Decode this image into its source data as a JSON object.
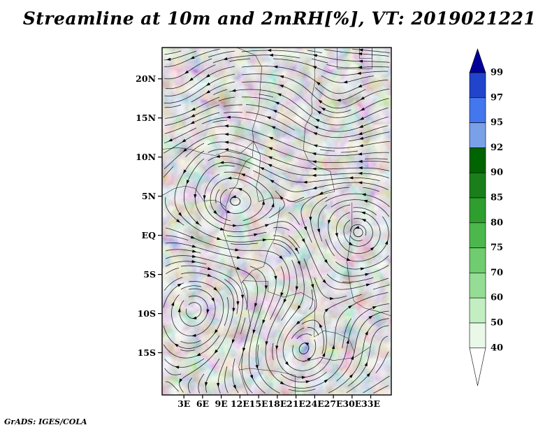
{
  "title": "Streamline at 10m and 2mRH[%], VT: 2019021221",
  "attribution": "GrADS: IGES/COLA",
  "chart_data": {
    "type": "streamline-map",
    "title": "Streamline at 10m and 2mRH[%], VT: 2019021221",
    "valid_time": "2019021221",
    "variables": [
      "10m wind streamlines",
      "2m relative humidity (%)"
    ],
    "x_axis": {
      "ticks": [
        "3E",
        "6E",
        "9E",
        "12E",
        "15E",
        "18E",
        "21E",
        "24E",
        "27E",
        "30E",
        "33E"
      ],
      "lon_values": [
        3,
        6,
        9,
        12,
        15,
        18,
        21,
        24,
        27,
        30,
        33
      ],
      "range": [
        -0.5,
        36.3
      ]
    },
    "y_axis": {
      "ticks": [
        "20N",
        "15N",
        "10N",
        "5N",
        "EQ",
        "5S",
        "10S",
        "15S"
      ],
      "lat_values": [
        20,
        15,
        10,
        5,
        0,
        -5,
        -10,
        -15
      ],
      "range": [
        -20.4,
        24.0
      ]
    },
    "colorbar": {
      "unit": "%",
      "levels": [
        99,
        97,
        95,
        92,
        90,
        85,
        80,
        75,
        70,
        60,
        50,
        40
      ],
      "colors": [
        "#000099",
        "#2244cc",
        "#4477ee",
        "#7aa0e8",
        "#006400",
        "#1a7f1a",
        "#2e9e2e",
        "#4cb84c",
        "#6fcc6f",
        "#95dd95",
        "#c2eec2",
        "#e9f8e9",
        "#ffffff"
      ]
    },
    "shading": {
      "base_color": "#72d472",
      "base_north_edge": [
        [
          -0.5,
          5.0
        ],
        [
          2,
          5.8
        ],
        [
          4,
          6.2
        ],
        [
          6,
          6.0
        ],
        [
          7.5,
          6.5
        ],
        [
          9,
          7.6
        ],
        [
          10.5,
          8.8
        ],
        [
          12,
          8.8
        ],
        [
          13.2,
          7.8
        ],
        [
          14.5,
          7.0
        ],
        [
          16,
          7.2
        ],
        [
          18,
          6.8
        ],
        [
          20,
          7.2
        ],
        [
          22,
          7.6
        ],
        [
          24,
          7.8
        ],
        [
          26,
          8.0
        ],
        [
          28,
          8.4
        ],
        [
          30,
          8.2
        ],
        [
          32,
          8.6
        ],
        [
          34,
          8.4
        ],
        [
          36.3,
          8.8
        ]
      ],
      "class_colors": {
        "mid": "#4fc24f",
        "dark": "#22a022",
        "darker": "#0e7d0e",
        "blue": "#4477ee",
        "deepblue": "#1a3ed6",
        "pale": "#e9f8e9",
        "speck": "#72d472"
      },
      "class_order": [
        "mid",
        "dark",
        "darker",
        "blue",
        "deepblue",
        "pale",
        "speck"
      ],
      "blobs": {
        "mid": [
          [
            7,
            -7,
            9,
            10
          ],
          [
            20,
            -5,
            11,
            8
          ],
          [
            17,
            -13,
            13,
            6
          ],
          [
            12,
            2.5,
            4,
            3.5
          ],
          [
            30,
            -3,
            5,
            6
          ],
          [
            26,
            -14,
            7,
            4
          ],
          [
            33,
            -7,
            4,
            5
          ]
        ],
        "dark": [
          [
            10.8,
            -8,
            4.5,
            8
          ],
          [
            20.5,
            -4.5,
            8,
            7
          ],
          [
            25.5,
            -10.5,
            5.5,
            4.5
          ],
          [
            12.8,
            3.2,
            3,
            2.2
          ],
          [
            19,
            -17,
            5,
            2.2
          ],
          [
            29.5,
            -5.5,
            3.5,
            4.5
          ],
          [
            22.5,
            -15.5,
            4,
            2.5
          ],
          [
            33,
            -9.5,
            2.5,
            3.5
          ],
          [
            15,
            -2,
            3,
            3
          ]
        ],
        "darker": [
          [
            11,
            -6,
            2.5,
            4
          ],
          [
            21,
            -4,
            5,
            4.5
          ],
          [
            24.5,
            -8,
            4,
            4
          ],
          [
            28.5,
            -13,
            3,
            2
          ]
        ],
        "blue": [
          [
            20.8,
            -2.8,
            4.2,
            3.6
          ],
          [
            24.3,
            -7.2,
            4.2,
            4
          ],
          [
            19.8,
            -9.8,
            3.2,
            2.6
          ],
          [
            27.6,
            -3.2,
            2.4,
            2.2
          ],
          [
            29.6,
            -8.6,
            2,
            2.8
          ],
          [
            10.9,
            -1.2,
            1.5,
            2.4
          ],
          [
            17.3,
            -5.6,
            2.4,
            1.8
          ],
          [
            23.2,
            -12.6,
            2.4,
            1.8
          ],
          [
            26.2,
            -15.3,
            1.8,
            1.4
          ],
          [
            12.5,
            -5,
            1.5,
            1.5
          ],
          [
            21,
            -17.5,
            1.6,
            1.2
          ],
          [
            22.8,
            1.2,
            1.8,
            1.4
          ],
          [
            25.8,
            0.5,
            1.5,
            1.2
          ]
        ],
        "deepblue": [
          [
            21,
            -3,
            2.2,
            1.8
          ],
          [
            24.5,
            -7,
            2.4,
            2
          ],
          [
            20,
            -9.5,
            1.6,
            1.3
          ],
          [
            29.6,
            -8.2,
            1.1,
            1.5
          ],
          [
            27.6,
            -3,
            1.2,
            1.1
          ],
          [
            22.5,
            -5.5,
            1.5,
            1.3
          ]
        ],
        "pale": [
          [
            34,
            -18,
            4,
            3.5
          ],
          [
            32,
            -16,
            3,
            2.5
          ],
          [
            35,
            -13,
            2.5,
            2
          ]
        ],
        "speck": [
          [
            6.5,
            15.5,
            0.5,
            0.4
          ],
          [
            11,
            20,
            0.4,
            0.3
          ],
          [
            19.5,
            22.8,
            0.8,
            0.5
          ],
          [
            27,
            21,
            0.5,
            0.4
          ],
          [
            31.8,
            23.3,
            1.2,
            0.8
          ],
          [
            16,
            12.5,
            0.5,
            0.4
          ],
          [
            23,
            14,
            0.4,
            0.3
          ],
          [
            3.5,
            18,
            0.4,
            0.3
          ],
          [
            9,
            23,
            0.5,
            0.4
          ],
          [
            24.5,
            23.5,
            0.6,
            0.4
          ]
        ]
      }
    },
    "borders": [
      [
        [
          -0.5,
          5.1
        ],
        [
          1.5,
          6.0
        ],
        [
          3.2,
          6.3
        ],
        [
          4.8,
          6.0
        ],
        [
          6.2,
          4.4
        ],
        [
          7.8,
          4.5
        ],
        [
          8.8,
          4.2
        ],
        [
          9.7,
          3.6
        ],
        [
          9.9,
          2.4
        ],
        [
          9.3,
          0.5
        ],
        [
          10.0,
          -1.2
        ],
        [
          11.3,
          -4.3
        ],
        [
          12.2,
          -6.1
        ],
        [
          13.2,
          -9.0
        ],
        [
          13.7,
          -11.5
        ],
        [
          12.7,
          -14.3
        ],
        [
          11.8,
          -16.8
        ],
        [
          12.6,
          -19.0
        ],
        [
          13.3,
          -20.4
        ]
      ],
      [
        [
          11.5,
          24
        ],
        [
          14.5,
          23.0
        ],
        [
          15.5,
          21.5
        ],
        [
          15.0,
          16.0
        ],
        [
          14.0,
          13.5
        ],
        [
          14.2,
          12.0
        ]
      ],
      [
        [
          24,
          24
        ],
        [
          24,
          19.5
        ],
        [
          23.5,
          17.5
        ],
        [
          23.6,
          15.7
        ],
        [
          22.5,
          14.0
        ],
        [
          22.2,
          11.0
        ],
        [
          23.0,
          9.5
        ],
        [
          24.5,
          8.7
        ],
        [
          26.5,
          8.2
        ],
        [
          27.2,
          5.6
        ]
      ],
      [
        [
          14.2,
          12.0
        ],
        [
          15.3,
          10.2
        ],
        [
          15.1,
          7.8
        ],
        [
          14.6,
          6.2
        ],
        [
          15.0,
          4.3
        ]
      ],
      [
        [
          15,
          4.3
        ],
        [
          17,
          4.8
        ],
        [
          19,
          4.7
        ],
        [
          21,
          4.2
        ],
        [
          23,
          4.8
        ],
        [
          25,
          5.2
        ],
        [
          27.2,
          5.6
        ]
      ],
      [
        [
          30,
          4.2
        ],
        [
          30,
          1.2
        ],
        [
          29.6,
          -0.5
        ],
        [
          29.6,
          -1.4
        ],
        [
          29.2,
          -3.4
        ],
        [
          29.4,
          -5.0
        ],
        [
          29.8,
          -6.8
        ],
        [
          30.3,
          -8.4
        ]
      ],
      [
        [
          12.5,
          -5.8
        ],
        [
          16.5,
          -5.9
        ],
        [
          16.5,
          -7.2
        ],
        [
          19.0,
          -7.9
        ],
        [
          21.8,
          -7.3
        ],
        [
          24.0,
          -8.3
        ],
        [
          24.0,
          -11.0
        ],
        [
          23.9,
          -13.0
        ]
      ],
      [
        [
          22,
          -16.2
        ],
        [
          25,
          -15.6
        ],
        [
          27,
          -16.0
        ],
        [
          28.8,
          -15.8
        ],
        [
          30.4,
          -15.6
        ],
        [
          33,
          -14.2
        ]
      ],
      [
        [
          11.8,
          -17.2
        ],
        [
          13.5,
          -17.0
        ],
        [
          18,
          -17.4
        ],
        [
          20.9,
          -17.9
        ],
        [
          20.9,
          -20.4
        ]
      ],
      [
        [
          30.3,
          -8.4
        ],
        [
          32,
          -9.3
        ],
        [
          34,
          -9.7
        ],
        [
          36.3,
          -10.3
        ]
      ],
      [
        [
          -0.5,
          11.0
        ],
        [
          2,
          11.2
        ],
        [
          4,
          11.0
        ],
        [
          6,
          10.5
        ],
        [
          8,
          10.2
        ],
        [
          10,
          10.8
        ],
        [
          12,
          10.4
        ],
        [
          14.2,
          12.0
        ]
      ],
      [
        [
          9.7,
          3.6
        ],
        [
          10.5,
          5.5
        ],
        [
          11.5,
          6.5
        ],
        [
          12.0,
          8.0
        ],
        [
          13.0,
          9.5
        ],
        [
          14.0,
          10.0
        ],
        [
          14.2,
          12.0
        ]
      ],
      [
        [
          12.2,
          -6.1
        ],
        [
          14.0,
          -4.5
        ],
        [
          15.8,
          -4.0
        ],
        [
          16.5,
          -2.0
        ],
        [
          17.5,
          -0.5
        ],
        [
          18.0,
          1.5
        ],
        [
          18.4,
          3.6
        ]
      ],
      [
        [
          23.9,
          -13.0
        ],
        [
          25.5,
          -12.2
        ],
        [
          27.5,
          -12.5
        ],
        [
          29.5,
          -13.2
        ],
        [
          30.4,
          -15.0
        ]
      ]
    ],
    "border_boxes": [
      {
        "lon1": 27.6,
        "lat1": 21.3,
        "lon2": 33.2,
        "lat2": 24.0
      },
      {
        "lon1": 31.2,
        "lat1": 22.6,
        "lon2": 33.2,
        "lat2": 24.0
      }
    ]
  }
}
